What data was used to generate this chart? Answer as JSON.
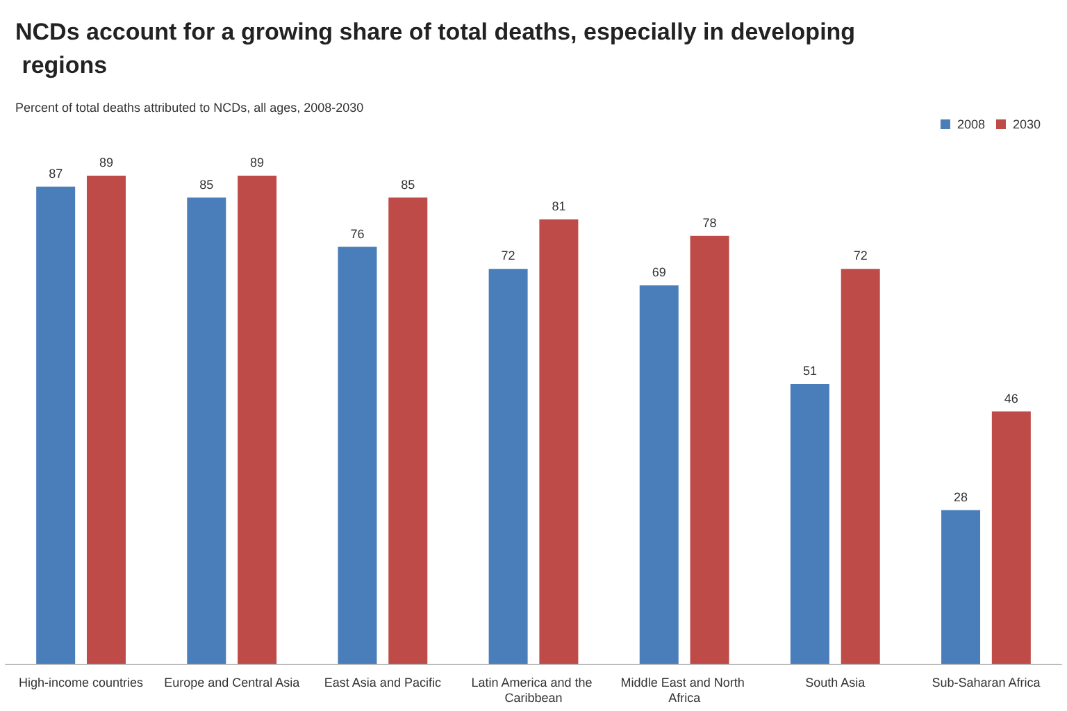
{
  "chart_data": {
    "type": "bar",
    "title": "NCDs account for a growing share of total deaths, especially in developing regions",
    "subtitle": "Percent of total deaths attributed to NCDs, all ages, 2008-2030",
    "categories": [
      "High-income countries",
      "Europe and Central Asia",
      "East Asia and Pacific",
      "Latin America and the Caribbean",
      "Middle East and North Africa",
      "South Asia",
      "Sub-Saharan Africa"
    ],
    "series": [
      {
        "name": "2008",
        "color": "#4a7ebb",
        "values": [
          87,
          85,
          76,
          72,
          69,
          51,
          28
        ]
      },
      {
        "name": "2030",
        "color": "#be4b48",
        "values": [
          89,
          89,
          85,
          81,
          78,
          72,
          46
        ]
      }
    ],
    "data_labels": true,
    "legend": "top right"
  }
}
